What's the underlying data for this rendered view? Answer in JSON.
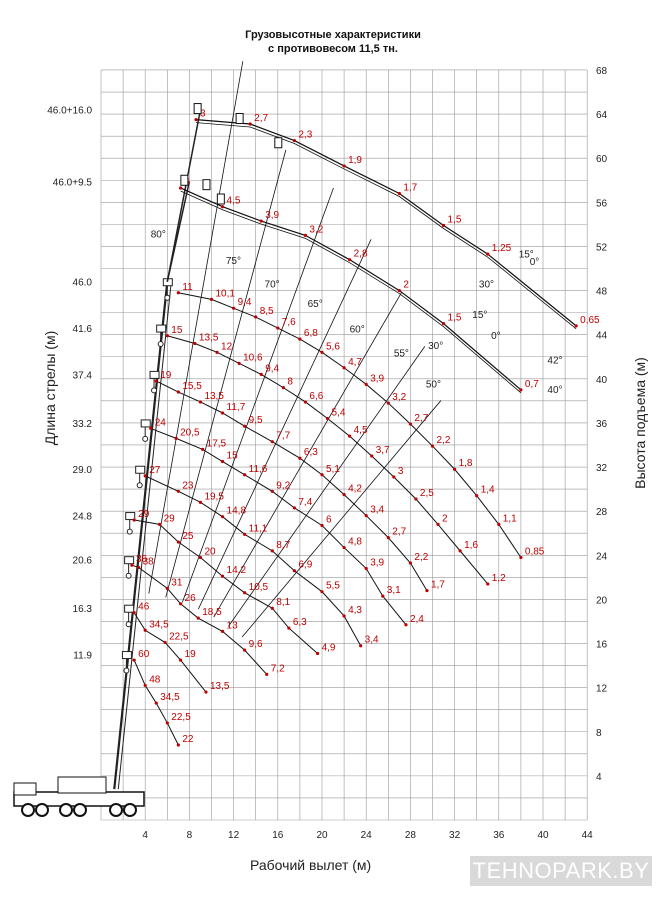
{
  "title_line1": "Грузовысотные характеристики",
  "title_line2": "с противовесом 11,5 тн.",
  "ylabel": "Длина стрелы (м)",
  "y2label": "Высота подъема (м)",
  "xlabel": "Рабочий вылет (м)",
  "watermark": "TEHNOPARK.BY",
  "colors": {
    "grid": "#999999",
    "curve": "#111111",
    "load": "#c00000"
  },
  "x_ticks": [
    "4",
    "8",
    "12",
    "16",
    "20",
    "24",
    "28",
    "32",
    "36",
    "40",
    "44"
  ],
  "height_ticks": [
    "4",
    "8",
    "12",
    "16",
    "20",
    "24",
    "28",
    "32",
    "36",
    "40",
    "44",
    "48",
    "52",
    "56",
    "60",
    "64",
    "68"
  ],
  "boom_lengths": [
    {
      "label": "11.9",
      "h": 15
    },
    {
      "label": "16.3",
      "h": 19.2
    },
    {
      "label": "20.6",
      "h": 23.6
    },
    {
      "label": "24.8",
      "h": 27.6
    },
    {
      "label": "29.0",
      "h": 31.8
    },
    {
      "label": "33.2",
      "h": 36
    },
    {
      "label": "37.4",
      "h": 40.4
    },
    {
      "label": "41.6",
      "h": 44.6
    },
    {
      "label": "46.0",
      "h": 48.8
    },
    {
      "label": "46.0+9.5",
      "h": 57.9
    },
    {
      "label": "46.0+16.0",
      "h": 64.4
    }
  ],
  "angle_labels": [
    "80°",
    "75°",
    "70°",
    "65°",
    "60°",
    "55°",
    "50°",
    "42°",
    "40°",
    "30°",
    "15°",
    "0°",
    "30°",
    "15°",
    "0°"
  ],
  "main_curves": [
    {
      "boom": "11.9",
      "loads": [
        {
          "x": 3,
          "h": 14.5,
          "v": "60"
        },
        {
          "x": 4,
          "h": 12.2,
          "v": "48"
        },
        {
          "x": 5,
          "h": 10.6,
          "v": "34,5"
        },
        {
          "x": 6,
          "h": 8.8,
          "v": "22,5"
        },
        {
          "x": 7,
          "h": 6.8,
          "v": "22"
        }
      ]
    },
    {
      "boom": "16.3",
      "loads": [
        {
          "x": 3,
          "h": 18.8,
          "v": "46"
        },
        {
          "x": 4,
          "h": 17.2,
          "v": "34,5"
        },
        {
          "x": 5.8,
          "h": 16.1,
          "v": "22,5"
        },
        {
          "x": 7.2,
          "h": 14.5,
          "v": "19"
        },
        {
          "x": 9.5,
          "h": 11.6,
          "v": "13,5"
        }
      ]
    },
    {
      "boom": "20.6",
      "loads": [
        {
          "x": 2.8,
          "h": 23.1,
          "v": "36"
        },
        {
          "x": 3.4,
          "h": 22.9,
          "v": "38"
        },
        {
          "x": 6,
          "h": 21,
          "v": "31"
        },
        {
          "x": 7.2,
          "h": 19.6,
          "v": "26"
        },
        {
          "x": 8.8,
          "h": 18.3,
          "v": "18,5"
        },
        {
          "x": 11,
          "h": 17.1,
          "v": "13"
        },
        {
          "x": 13,
          "h": 15.4,
          "v": "9,6"
        },
        {
          "x": 15,
          "h": 13.2,
          "v": "7,2"
        }
      ]
    },
    {
      "boom": "24.8",
      "loads": [
        {
          "x": 3,
          "h": 27.2,
          "v": "29"
        },
        {
          "x": 5.3,
          "h": 26.8,
          "v": "29"
        },
        {
          "x": 7,
          "h": 25.2,
          "v": "25"
        },
        {
          "x": 9,
          "h": 23.8,
          "v": "20"
        },
        {
          "x": 11,
          "h": 22.1,
          "v": "14,2"
        },
        {
          "x": 13,
          "h": 20.6,
          "v": "10,5"
        },
        {
          "x": 15.5,
          "h": 19.2,
          "v": "8,1"
        },
        {
          "x": 17,
          "h": 17.4,
          "v": "6,3"
        },
        {
          "x": 19.6,
          "h": 15.1,
          "v": "4,9"
        }
      ]
    },
    {
      "boom": "29.0",
      "loads": [
        {
          "x": 4,
          "h": 31.2,
          "v": "27"
        },
        {
          "x": 7,
          "h": 29.8,
          "v": "23"
        },
        {
          "x": 9,
          "h": 28.8,
          "v": "19,5"
        },
        {
          "x": 11,
          "h": 27.5,
          "v": "14,8"
        },
        {
          "x": 13,
          "h": 25.9,
          "v": "11,1"
        },
        {
          "x": 15.5,
          "h": 24.4,
          "v": "8,7"
        },
        {
          "x": 17.5,
          "h": 22.6,
          "v": "6,9"
        },
        {
          "x": 20,
          "h": 20.7,
          "v": "5,5"
        },
        {
          "x": 22,
          "h": 18.5,
          "v": "4,3"
        },
        {
          "x": 23.5,
          "h": 15.8,
          "v": "3,4"
        }
      ]
    },
    {
      "boom": "33.2",
      "loads": [
        {
          "x": 4.5,
          "h": 35.5,
          "v": "24"
        },
        {
          "x": 6.8,
          "h": 34.6,
          "v": "20,5"
        },
        {
          "x": 9.2,
          "h": 33.6,
          "v": "17,5"
        },
        {
          "x": 11,
          "h": 32.5,
          "v": "15"
        },
        {
          "x": 13,
          "h": 31.3,
          "v": "11,6"
        },
        {
          "x": 15.5,
          "h": 29.8,
          "v": "9,2"
        },
        {
          "x": 17.5,
          "h": 28.3,
          "v": "7,4"
        },
        {
          "x": 20,
          "h": 26.7,
          "v": "6"
        },
        {
          "x": 22,
          "h": 24.7,
          "v": "4,8"
        },
        {
          "x": 24,
          "h": 22.8,
          "v": "3,9"
        },
        {
          "x": 25.5,
          "h": 20.3,
          "v": "3,1"
        },
        {
          "x": 27.6,
          "h": 17.7,
          "v": "2,4"
        }
      ]
    },
    {
      "boom": "37.4",
      "loads": [
        {
          "x": 5,
          "h": 39.8,
          "v": "19"
        },
        {
          "x": 7,
          "h": 38.8,
          "v": "15,5"
        },
        {
          "x": 9,
          "h": 37.9,
          "v": "13,5"
        },
        {
          "x": 11,
          "h": 36.9,
          "v": "11,7"
        },
        {
          "x": 13,
          "h": 35.7,
          "v": "9,5"
        },
        {
          "x": 15.5,
          "h": 34.3,
          "v": "7,7"
        },
        {
          "x": 18,
          "h": 32.8,
          "v": "6,3"
        },
        {
          "x": 20,
          "h": 31.3,
          "v": "5,1"
        },
        {
          "x": 22,
          "h": 29.5,
          "v": "4,2"
        },
        {
          "x": 24,
          "h": 27.6,
          "v": "3,4"
        },
        {
          "x": 26,
          "h": 25.6,
          "v": "2,7"
        },
        {
          "x": 28,
          "h": 23.3,
          "v": "2,2"
        },
        {
          "x": 29.5,
          "h": 20.8,
          "v": "1,7"
        }
      ]
    },
    {
      "boom": "41.6",
      "loads": [
        {
          "x": 6,
          "h": 43.9,
          "v": "15"
        },
        {
          "x": 8.5,
          "h": 43.2,
          "v": "13,5"
        },
        {
          "x": 10.5,
          "h": 42.4,
          "v": "12"
        },
        {
          "x": 12.5,
          "h": 41.4,
          "v": "10,6"
        },
        {
          "x": 14.5,
          "h": 40.4,
          "v": "9,4"
        },
        {
          "x": 16.5,
          "h": 39.2,
          "v": "8"
        },
        {
          "x": 18.5,
          "h": 37.9,
          "v": "6,6"
        },
        {
          "x": 20.5,
          "h": 36.4,
          "v": "5,4"
        },
        {
          "x": 22.5,
          "h": 34.8,
          "v": "4,5"
        },
        {
          "x": 24.5,
          "h": 33,
          "v": "3,7"
        },
        {
          "x": 26.5,
          "h": 31.1,
          "v": "3"
        },
        {
          "x": 28.5,
          "h": 29.1,
          "v": "2,5"
        },
        {
          "x": 30.5,
          "h": 26.8,
          "v": "2"
        },
        {
          "x": 32.5,
          "h": 24.4,
          "v": "1,6"
        },
        {
          "x": 35,
          "h": 21.4,
          "v": "1,2"
        }
      ]
    },
    {
      "boom": "46.0",
      "loads": [
        {
          "x": 7,
          "h": 47.8,
          "v": "11"
        },
        {
          "x": 10,
          "h": 47.2,
          "v": "10,1"
        },
        {
          "x": 12,
          "h": 46.4,
          "v": "9,4"
        },
        {
          "x": 14,
          "h": 45.6,
          "v": "8,5"
        },
        {
          "x": 16,
          "h": 44.6,
          "v": "7,6"
        },
        {
          "x": 18,
          "h": 43.6,
          "v": "6,8"
        },
        {
          "x": 20,
          "h": 42.4,
          "v": "5,6"
        },
        {
          "x": 22,
          "h": 41,
          "v": "4,7"
        },
        {
          "x": 24,
          "h": 39.5,
          "v": "3,9"
        },
        {
          "x": 26,
          "h": 37.8,
          "v": "3,2"
        },
        {
          "x": 28,
          "h": 35.9,
          "v": "2,7"
        },
        {
          "x": 30,
          "h": 33.9,
          "v": "2,2"
        },
        {
          "x": 32,
          "h": 31.8,
          "v": "1,8"
        },
        {
          "x": 34,
          "h": 29.4,
          "v": "1,4"
        },
        {
          "x": 36,
          "h": 26.8,
          "v": "1,1"
        },
        {
          "x": 38,
          "h": 23.8,
          "v": "0,85"
        }
      ]
    }
  ],
  "jib_curves": [
    {
      "jib": "9.5 0°",
      "loads": [
        {
          "x": 7.2,
          "h": 57.3,
          "v": "6"
        },
        {
          "x": 11,
          "h": 55.6,
          "v": "4,5"
        },
        {
          "x": 14.5,
          "h": 54.3,
          "v": "3,9"
        },
        {
          "x": 18.5,
          "h": 53,
          "v": "3,2"
        },
        {
          "x": 22.5,
          "h": 50.8,
          "v": "2,8"
        },
        {
          "x": 27,
          "h": 48,
          "v": "2"
        },
        {
          "x": 31,
          "h": 45,
          "v": "1,5"
        },
        {
          "x": 38,
          "h": 39,
          "v": "0,7"
        }
      ]
    },
    {
      "jib": "16.0 0°",
      "loads": [
        {
          "x": 8.6,
          "h": 63.5,
          "v": "3"
        },
        {
          "x": 13.5,
          "h": 63.1,
          "v": "2,7"
        },
        {
          "x": 17.5,
          "h": 61.6,
          "v": "2,3"
        },
        {
          "x": 22,
          "h": 59.3,
          "v": "1,9"
        },
        {
          "x": 27,
          "h": 56.8,
          "v": "1,7"
        },
        {
          "x": 31,
          "h": 53.9,
          "v": "1,5"
        },
        {
          "x": 35,
          "h": 51.3,
          "v": "1,25"
        },
        {
          "x": 43,
          "h": 44.8,
          "v": "0,65"
        }
      ]
    }
  ]
}
